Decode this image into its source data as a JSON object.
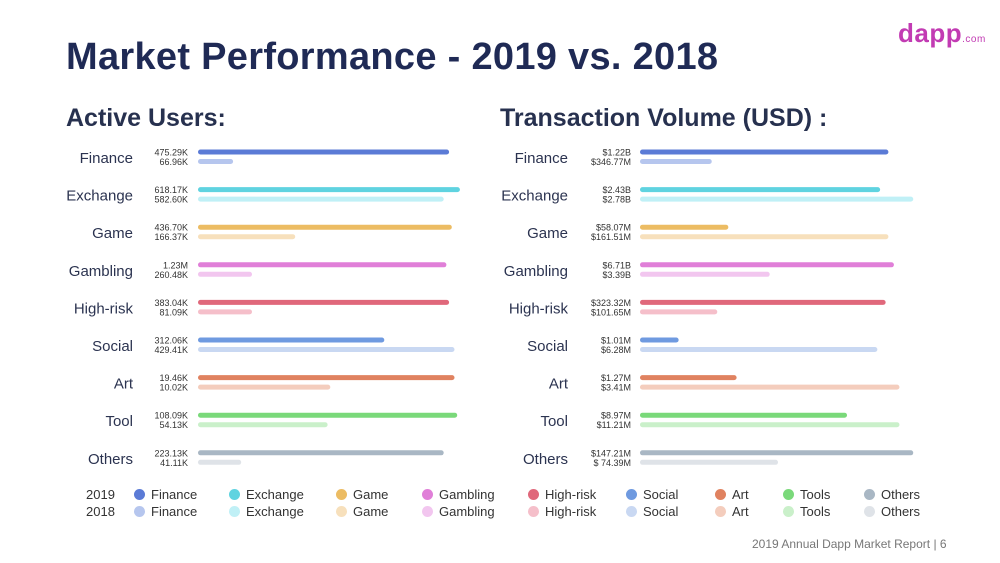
{
  "page": {
    "title": "Market Performance - 2019 vs. 2018",
    "logo_main": "dapp",
    "logo_suffix": ".com",
    "footer": "2019 Annual Dapp Market Report  |  6"
  },
  "chart_data": [
    {
      "type": "bar",
      "orientation": "horizontal",
      "title": "Active Users:",
      "categories": [
        "Finance",
        "Exchange",
        "Game",
        "Gambling",
        "High-risk",
        "Social",
        "Art",
        "Tool",
        "Others"
      ],
      "series": [
        {
          "name": "2019",
          "values": [
            475290,
            618170,
            436700,
            1230000,
            383040,
            312060,
            19460,
            108090,
            223130
          ],
          "labels": [
            "475.29K",
            "618.17K",
            "436.70K",
            "1.23M",
            "383.04K",
            "312.06K",
            "19.46K",
            "108.09K",
            "223.13K"
          ]
        },
        {
          "name": "2018",
          "values": [
            66960,
            582600,
            166370,
            260480,
            81090,
            429410,
            10020,
            54130,
            41110
          ],
          "labels": [
            "66.96K",
            "582.60K",
            "166.37K",
            "260.48K",
            "81.09K",
            "429.41K",
            "10.02K",
            "54.13K",
            "41.11K"
          ]
        }
      ],
      "bar_fraction": {
        "2019": [
          0.93,
          0.97,
          0.94,
          0.92,
          0.93,
          0.69,
          0.95,
          0.96,
          0.91
        ],
        "2018": [
          0.13,
          0.91,
          0.36,
          0.2,
          0.2,
          0.95,
          0.49,
          0.48,
          0.16
        ]
      }
    },
    {
      "type": "bar",
      "orientation": "horizontal",
      "title": "Transaction Volume (USD) :",
      "categories": [
        "Finance",
        "Exchange",
        "Game",
        "Gambling",
        "High-risk",
        "Social",
        "Art",
        "Tool",
        "Others"
      ],
      "series": [
        {
          "name": "2019",
          "values": [
            1220000000.0,
            2430000000.0,
            58070000.0,
            6710000000.0,
            323320000.0,
            1010000.0,
            1270000.0,
            8970000.0,
            147210000.0
          ],
          "labels": [
            "$1.22B",
            "$2.43B",
            "$58.07M",
            "$6.71B",
            "$323.32M",
            "$1.01M",
            "$1.27M",
            "$8.97M",
            "$147.21M"
          ]
        },
        {
          "name": "2018",
          "values": [
            346770000.0,
            2780000000.0,
            161510000.0,
            3390000000.0,
            101650000.0,
            6280000.0,
            3410000.0,
            11210000.0,
            74390000.0
          ],
          "labels": [
            "$346.77M",
            "$2.78B",
            "$161.51M",
            "$3.39B",
            "$101.65M",
            "$6.28M",
            "$3.41M",
            "$11.21M",
            "$ 74.39M"
          ]
        }
      ],
      "bar_fraction": {
        "2019": [
          0.9,
          0.87,
          0.32,
          0.92,
          0.89,
          0.14,
          0.35,
          0.75,
          0.99
        ],
        "2018": [
          0.26,
          0.99,
          0.9,
          0.47,
          0.28,
          0.86,
          0.94,
          0.94,
          0.5
        ]
      }
    }
  ],
  "colors": {
    "2019": [
      "#5b7bd6",
      "#5fd3e0",
      "#ecbc63",
      "#e07fd8",
      "#e0687b",
      "#6f9ae0",
      "#e08260",
      "#7ad97a",
      "#a9b7c4"
    ],
    "2018": [
      "#b6c6ee",
      "#c0f0f6",
      "#f7e0bc",
      "#f2c6ef",
      "#f5bfca",
      "#c9d8f2",
      "#f4cdbd",
      "#caf0ca",
      "#dfe3e8"
    ]
  },
  "legend": {
    "years": [
      "2019",
      "2018"
    ],
    "items": [
      "Finance",
      "Exchange",
      "Game",
      "Gambling",
      "High-risk",
      "Social",
      "Art",
      "Tools",
      "Others"
    ]
  }
}
